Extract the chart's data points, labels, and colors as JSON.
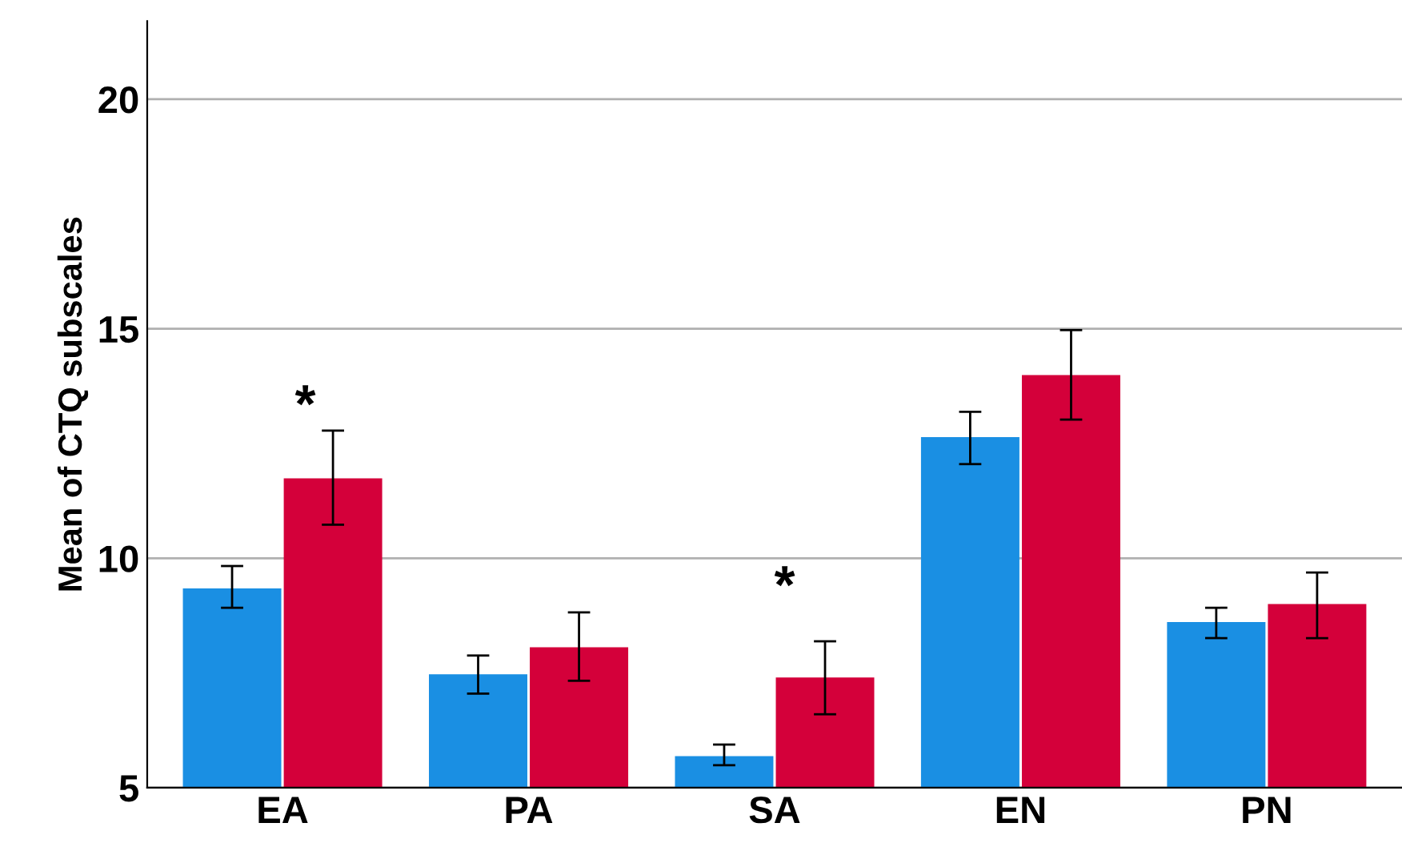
{
  "chart_data": {
    "type": "bar",
    "ylabel": "Mean of CTQ subscales",
    "categories": [
      "EA",
      "PA",
      "SA",
      "EN",
      "PN"
    ],
    "series": [
      {
        "color": "#1a8fe3",
        "values": [
          9.34,
          7.47,
          5.69,
          12.64,
          8.61
        ],
        "errors": [
          [
            8.92,
            9.83
          ],
          [
            7.05,
            7.88
          ],
          [
            5.49,
            5.94
          ],
          [
            12.05,
            13.19
          ],
          [
            8.26,
            8.92
          ]
        ]
      },
      {
        "color": "#d4003a",
        "values": [
          11.74,
          8.06,
          7.4,
          13.99,
          9.0
        ],
        "errors": [
          [
            10.73,
            12.78
          ],
          [
            7.33,
            8.82
          ],
          [
            6.6,
            8.19
          ],
          [
            13.02,
            14.97
          ],
          [
            8.26,
            9.69
          ]
        ]
      }
    ],
    "ylim": [
      5,
      21.7
    ],
    "yticks": [
      5,
      10,
      15,
      20
    ],
    "grid": "y",
    "legend": false,
    "annotations": [
      "*",
      "*"
    ]
  }
}
